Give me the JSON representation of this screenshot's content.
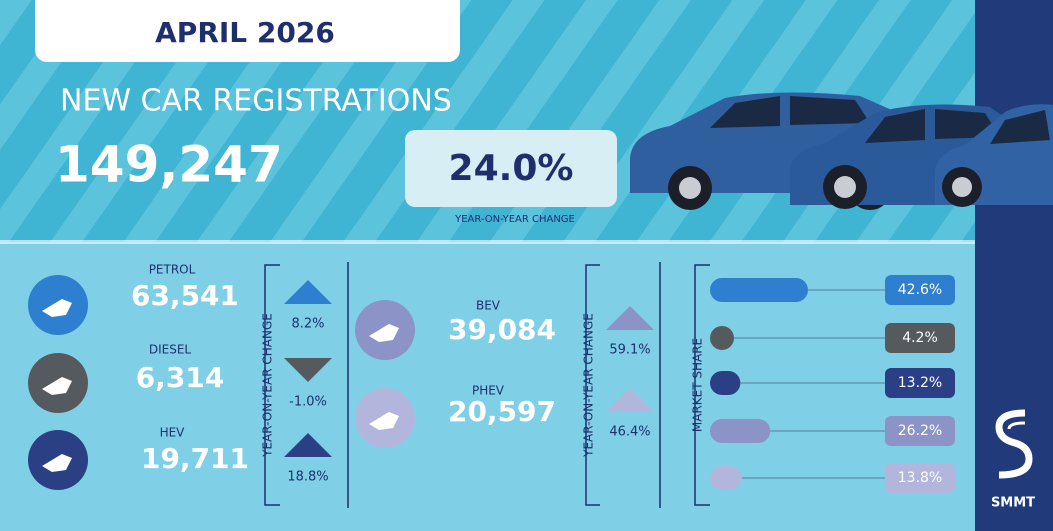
{
  "header": {
    "month": "APRIL 2026",
    "title": "NEW CAR REGISTRATIONS",
    "total": "149,247",
    "change": "24.0%",
    "change_label": "YEAR-ON-YEAR CHANGE"
  },
  "fuels": [
    {
      "name": "PETROL",
      "registrations": "63,541",
      "change": 8.2,
      "change_label": "8.2%",
      "share": 42.6,
      "share_label": "42.6%",
      "color": "#2e7fd0"
    },
    {
      "name": "DIESEL",
      "registrations": "6,314",
      "change": -1.0,
      "change_label": "-1.0%",
      "share": 4.2,
      "share_label": "4.2%",
      "color": "#555a5e"
    },
    {
      "name": "HEV",
      "registrations": "19,711",
      "change": 18.8,
      "change_label": "18.8%",
      "share": 13.2,
      "share_label": "13.2%",
      "color": "#2b3f84"
    },
    {
      "name": "BEV",
      "registrations": "39,084",
      "change": 59.1,
      "change_label": "59.1%",
      "share": 26.2,
      "share_label": "26.2%",
      "color": "#8c93c6"
    },
    {
      "name": "PHEV",
      "registrations": "20,597",
      "change": 46.4,
      "change_label": "46.4%",
      "share": 13.8,
      "share_label": "13.8%",
      "color": "#b3b6dc"
    }
  ],
  "side_labels": {
    "yoy_left": "YEAR-ON-YEAR CHANGE",
    "yoy_right": "YEAR-ON-YEAR CHANGE",
    "market_share": "MARKET SHARE"
  },
  "brand": "SMMT"
}
